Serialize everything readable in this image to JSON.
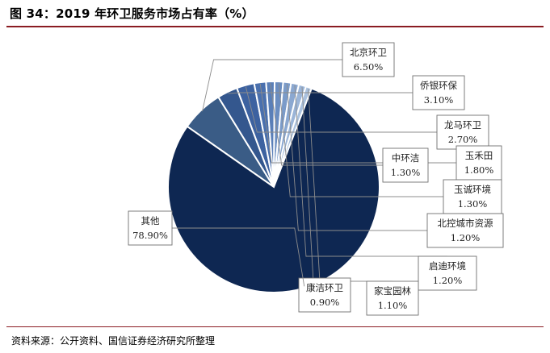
{
  "figure": {
    "title": "图 34：2019 年环卫服务市场占有率（%）",
    "source": "资料来源：公开资料、国信证券经济研究所整理"
  },
  "chart_data": {
    "type": "pie",
    "title": "图 34：2019 年环卫服务市场占有率（%）",
    "unit": "%",
    "slices": [
      {
        "label": "北京环卫",
        "value": 6.5,
        "display": "6.50%",
        "color": "#3a5c86"
      },
      {
        "label": "侨银环保",
        "value": 3.1,
        "display": "3.10%",
        "color": "#34578e"
      },
      {
        "label": "龙马环卫",
        "value": 2.7,
        "display": "2.70%",
        "color": "#3d62a0"
      },
      {
        "label": "玉禾田",
        "value": 1.8,
        "display": "1.80%",
        "color": "#4a70ae"
      },
      {
        "label": "中环洁",
        "value": 1.3,
        "display": "1.30%",
        "color": "#5a7fb8"
      },
      {
        "label": "玉诚环境",
        "value": 1.3,
        "display": "1.30%",
        "color": "#6a8dc1"
      },
      {
        "label": "北控城市资源",
        "value": 1.2,
        "display": "1.20%",
        "color": "#7b9bc9"
      },
      {
        "label": "启迪环境",
        "value": 1.2,
        "display": "1.20%",
        "color": "#8ba8d1"
      },
      {
        "label": "家宝园林",
        "value": 1.1,
        "display": "1.10%",
        "color": "#9bb5d8"
      },
      {
        "label": "康洁环卫",
        "value": 0.9,
        "display": "0.90%",
        "color": "#abc2df"
      },
      {
        "label": "其他",
        "value": 78.9,
        "display": "78.90%",
        "color": "#0e2752"
      }
    ]
  }
}
